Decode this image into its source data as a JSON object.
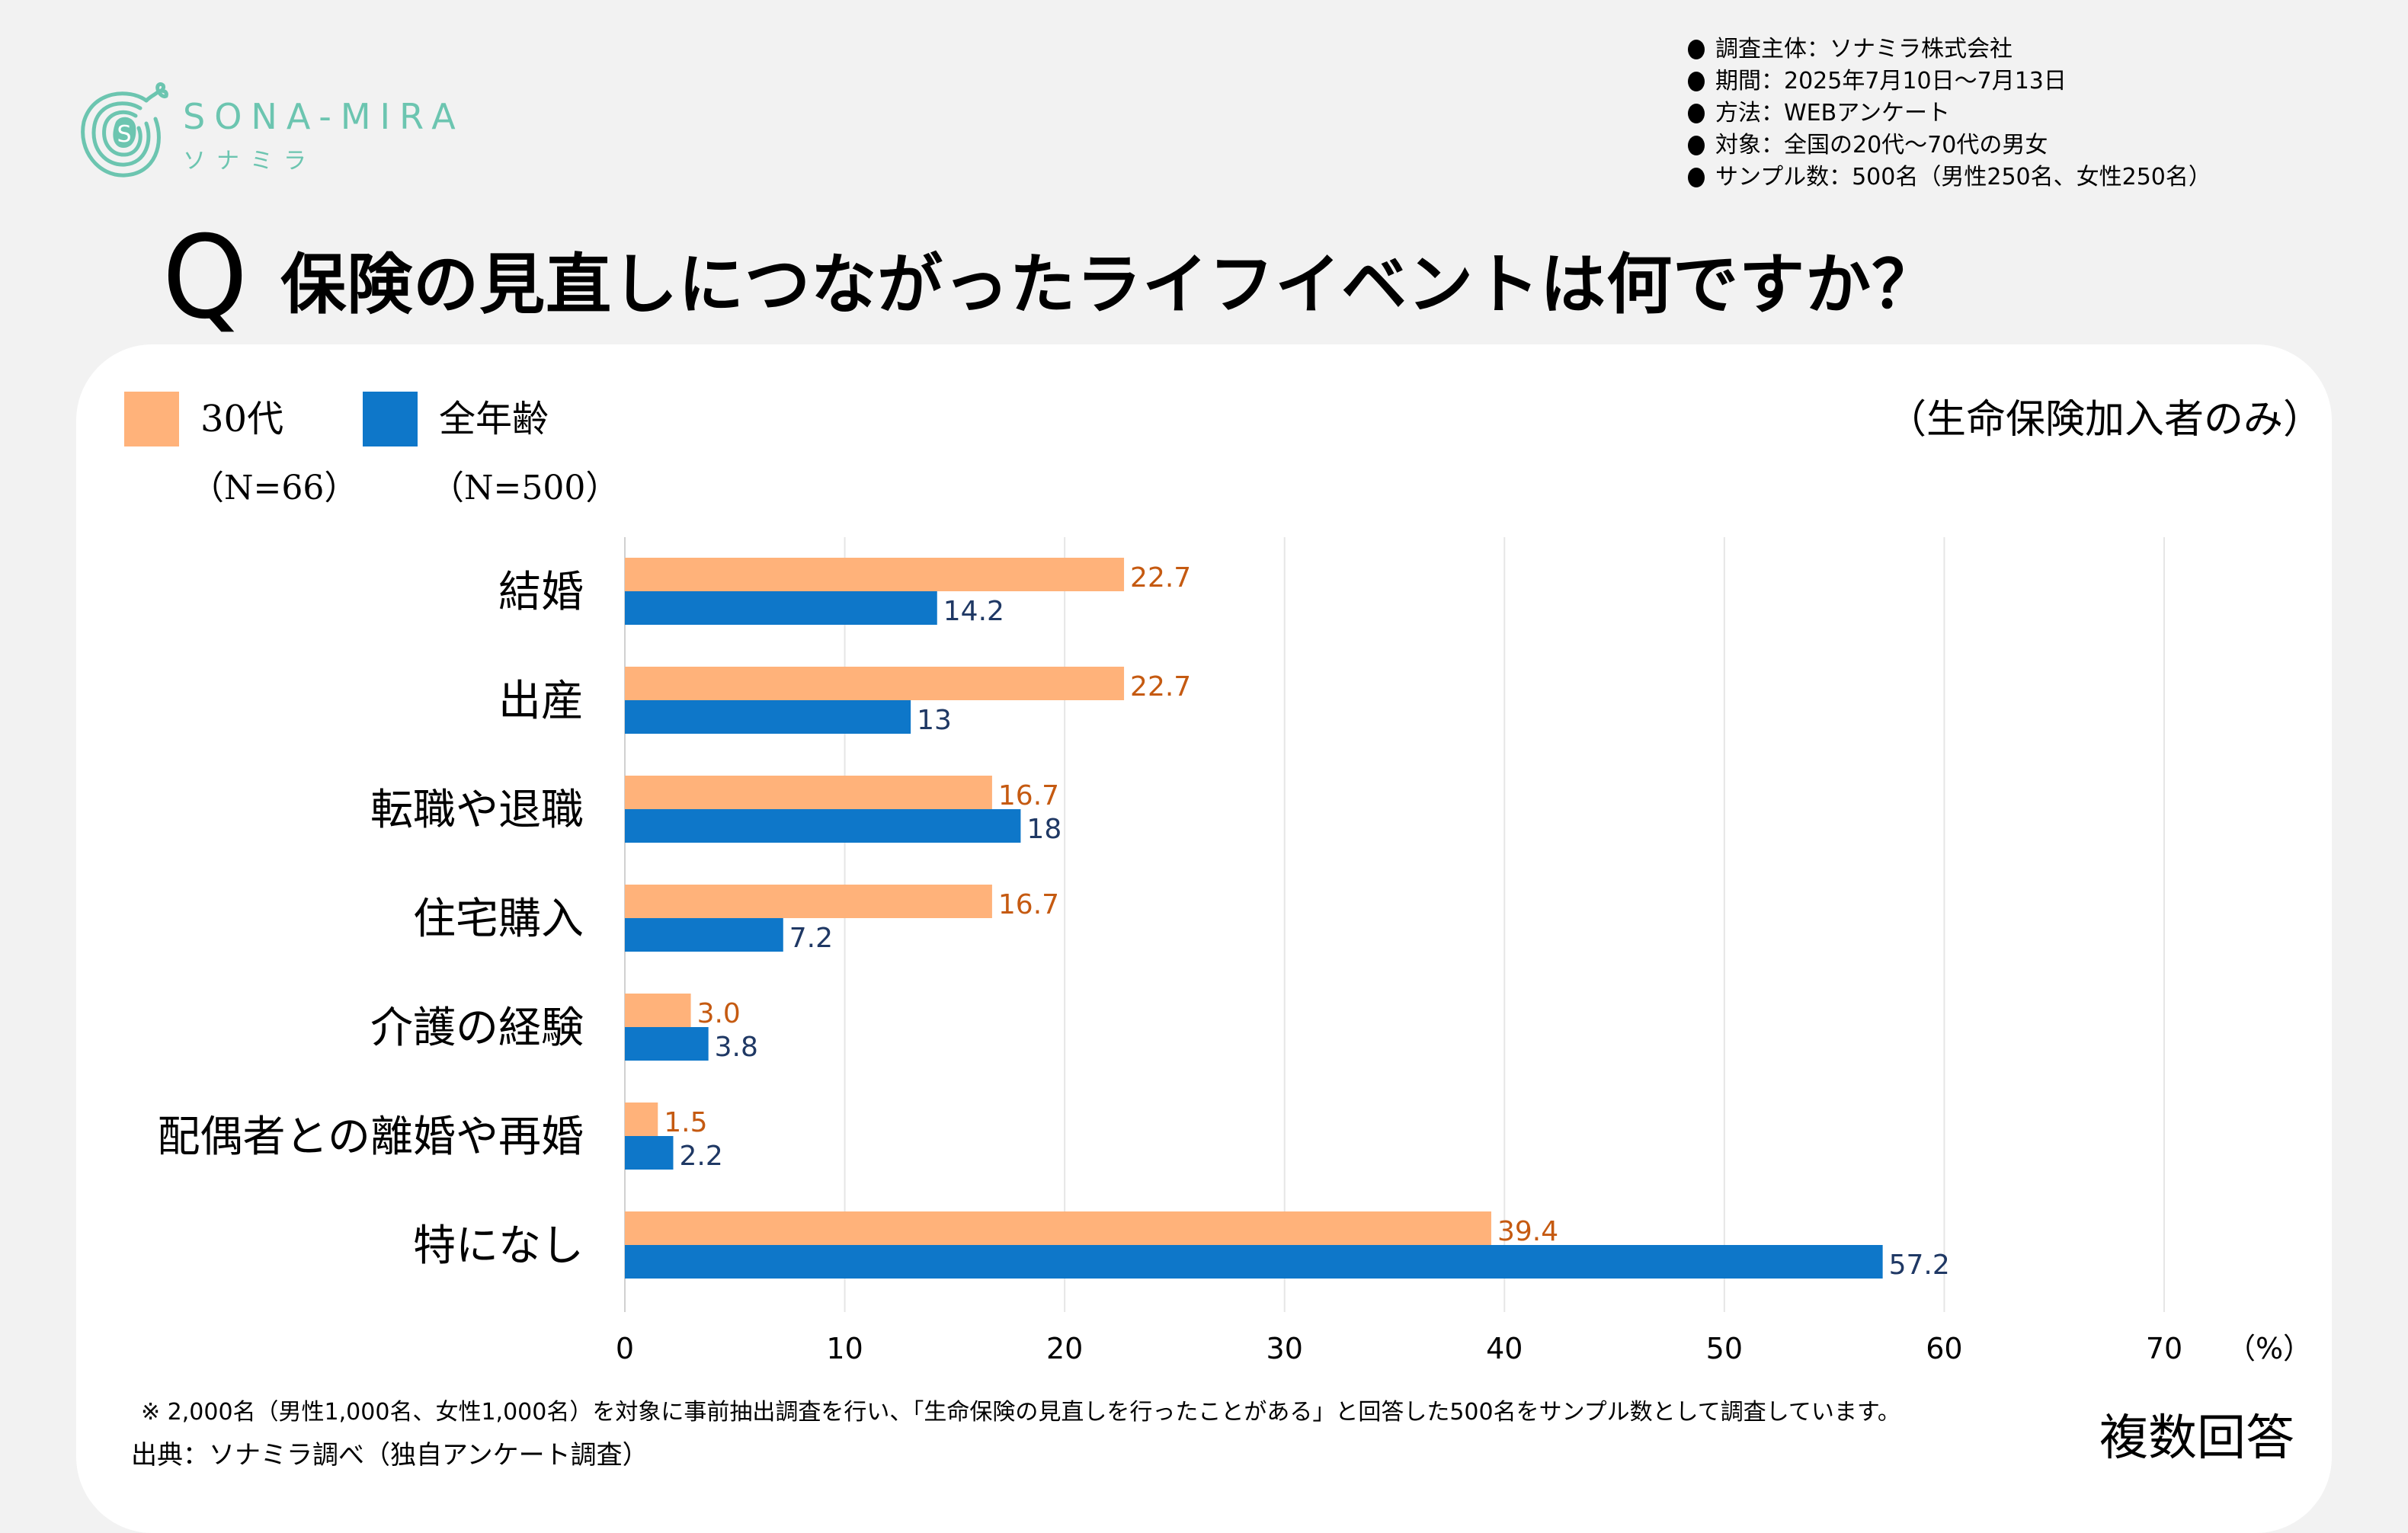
{
  "brand": {
    "name": "SONA-MIRA",
    "kana": "ソナミラ",
    "logo_letter": "S",
    "color": "#6cc5b0"
  },
  "survey_info": [
    "調査主体：ソナミラ株式会社",
    "期間：2025年7月10日～7月13日",
    "方法：WEBアンケート",
    "対象：全国の20代～70代の男女",
    "サンプル数：500名（男性250名、女性250名）"
  ],
  "question": {
    "mark": "Q",
    "text": "保険の見直しにつながったライフイベントは何ですか？"
  },
  "legend": [
    {
      "label": "30代",
      "n": "（N=66）",
      "color": "#ffb27a"
    },
    {
      "label": "全年齢",
      "n": "（N=500）",
      "color": "#0e77c9"
    }
  ],
  "scope_note": "（生命保険加入者のみ）",
  "multi_answer": "複数回答",
  "footnote": "※ 2,000名（男性1,000名、女性1,000名）を対象に事前抽出調査を行い、「生命保険の見直しを行ったことがある」と回答した500名をサンプル数として調査しています。",
  "source": "出典：ソナミラ調べ（独自アンケート調査）",
  "chart_data": {
    "type": "bar",
    "orientation": "horizontal",
    "title": "保険の見直しにつながったライフイベントは何ですか？",
    "xlabel": "（%）",
    "ylabel": "",
    "xlim": [
      0,
      70
    ],
    "xticks": [
      0,
      10,
      20,
      30,
      40,
      50,
      60,
      70
    ],
    "grid": true,
    "legend_position": "top-left",
    "categories": [
      "結婚",
      "出産",
      "転職や退職",
      "住宅購入",
      "介護の経験",
      "配偶者との離婚や再婚",
      "特になし"
    ],
    "series": [
      {
        "name": "30代",
        "n": 66,
        "color": "#ffb27a",
        "label_color": "#c55a11",
        "values": [
          22.7,
          22.7,
          16.7,
          16.7,
          3.0,
          1.5,
          39.4
        ],
        "labels": [
          "22.7",
          "22.7",
          "16.7",
          "16.7",
          "3.0",
          "1.5",
          "39.4"
        ]
      },
      {
        "name": "全年齢",
        "n": 500,
        "color": "#0e77c9",
        "label_color": "#1f3864",
        "values": [
          14.2,
          13,
          18,
          7.2,
          3.8,
          2.2,
          57.2
        ],
        "labels": [
          "14.2",
          "13",
          "18",
          "7.2",
          "3.8",
          "2.2",
          "57.2"
        ]
      }
    ]
  }
}
